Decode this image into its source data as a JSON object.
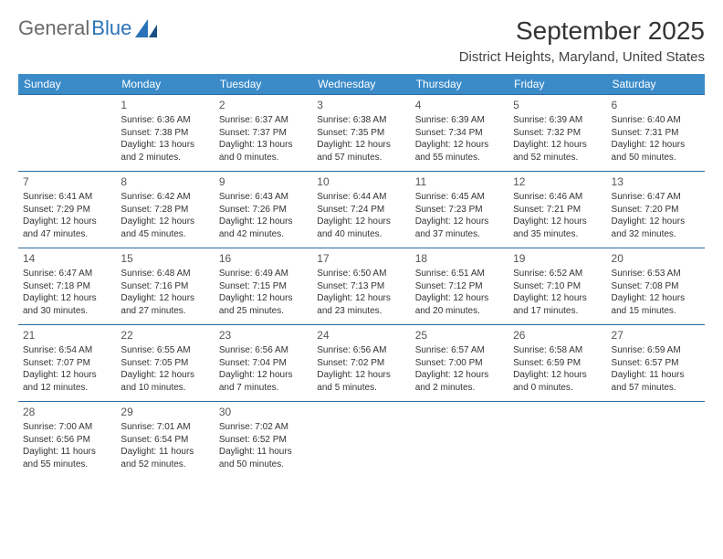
{
  "logo": {
    "part1": "General",
    "part2": "Blue"
  },
  "title": "September 2025",
  "location": "District Heights, Maryland, United States",
  "header_bg": "#3b8bc9",
  "row_border": "#2b6aa0",
  "dayHeaders": [
    "Sunday",
    "Monday",
    "Tuesday",
    "Wednesday",
    "Thursday",
    "Friday",
    "Saturday"
  ],
  "weeks": [
    [
      null,
      {
        "n": "1",
        "sr": "Sunrise: 6:36 AM",
        "ss": "Sunset: 7:38 PM",
        "dl": "Daylight: 13 hours and 2 minutes."
      },
      {
        "n": "2",
        "sr": "Sunrise: 6:37 AM",
        "ss": "Sunset: 7:37 PM",
        "dl": "Daylight: 13 hours and 0 minutes."
      },
      {
        "n": "3",
        "sr": "Sunrise: 6:38 AM",
        "ss": "Sunset: 7:35 PM",
        "dl": "Daylight: 12 hours and 57 minutes."
      },
      {
        "n": "4",
        "sr": "Sunrise: 6:39 AM",
        "ss": "Sunset: 7:34 PM",
        "dl": "Daylight: 12 hours and 55 minutes."
      },
      {
        "n": "5",
        "sr": "Sunrise: 6:39 AM",
        "ss": "Sunset: 7:32 PM",
        "dl": "Daylight: 12 hours and 52 minutes."
      },
      {
        "n": "6",
        "sr": "Sunrise: 6:40 AM",
        "ss": "Sunset: 7:31 PM",
        "dl": "Daylight: 12 hours and 50 minutes."
      }
    ],
    [
      {
        "n": "7",
        "sr": "Sunrise: 6:41 AM",
        "ss": "Sunset: 7:29 PM",
        "dl": "Daylight: 12 hours and 47 minutes."
      },
      {
        "n": "8",
        "sr": "Sunrise: 6:42 AM",
        "ss": "Sunset: 7:28 PM",
        "dl": "Daylight: 12 hours and 45 minutes."
      },
      {
        "n": "9",
        "sr": "Sunrise: 6:43 AM",
        "ss": "Sunset: 7:26 PM",
        "dl": "Daylight: 12 hours and 42 minutes."
      },
      {
        "n": "10",
        "sr": "Sunrise: 6:44 AM",
        "ss": "Sunset: 7:24 PM",
        "dl": "Daylight: 12 hours and 40 minutes."
      },
      {
        "n": "11",
        "sr": "Sunrise: 6:45 AM",
        "ss": "Sunset: 7:23 PM",
        "dl": "Daylight: 12 hours and 37 minutes."
      },
      {
        "n": "12",
        "sr": "Sunrise: 6:46 AM",
        "ss": "Sunset: 7:21 PM",
        "dl": "Daylight: 12 hours and 35 minutes."
      },
      {
        "n": "13",
        "sr": "Sunrise: 6:47 AM",
        "ss": "Sunset: 7:20 PM",
        "dl": "Daylight: 12 hours and 32 minutes."
      }
    ],
    [
      {
        "n": "14",
        "sr": "Sunrise: 6:47 AM",
        "ss": "Sunset: 7:18 PM",
        "dl": "Daylight: 12 hours and 30 minutes."
      },
      {
        "n": "15",
        "sr": "Sunrise: 6:48 AM",
        "ss": "Sunset: 7:16 PM",
        "dl": "Daylight: 12 hours and 27 minutes."
      },
      {
        "n": "16",
        "sr": "Sunrise: 6:49 AM",
        "ss": "Sunset: 7:15 PM",
        "dl": "Daylight: 12 hours and 25 minutes."
      },
      {
        "n": "17",
        "sr": "Sunrise: 6:50 AM",
        "ss": "Sunset: 7:13 PM",
        "dl": "Daylight: 12 hours and 23 minutes."
      },
      {
        "n": "18",
        "sr": "Sunrise: 6:51 AM",
        "ss": "Sunset: 7:12 PM",
        "dl": "Daylight: 12 hours and 20 minutes."
      },
      {
        "n": "19",
        "sr": "Sunrise: 6:52 AM",
        "ss": "Sunset: 7:10 PM",
        "dl": "Daylight: 12 hours and 17 minutes."
      },
      {
        "n": "20",
        "sr": "Sunrise: 6:53 AM",
        "ss": "Sunset: 7:08 PM",
        "dl": "Daylight: 12 hours and 15 minutes."
      }
    ],
    [
      {
        "n": "21",
        "sr": "Sunrise: 6:54 AM",
        "ss": "Sunset: 7:07 PM",
        "dl": "Daylight: 12 hours and 12 minutes."
      },
      {
        "n": "22",
        "sr": "Sunrise: 6:55 AM",
        "ss": "Sunset: 7:05 PM",
        "dl": "Daylight: 12 hours and 10 minutes."
      },
      {
        "n": "23",
        "sr": "Sunrise: 6:56 AM",
        "ss": "Sunset: 7:04 PM",
        "dl": "Daylight: 12 hours and 7 minutes."
      },
      {
        "n": "24",
        "sr": "Sunrise: 6:56 AM",
        "ss": "Sunset: 7:02 PM",
        "dl": "Daylight: 12 hours and 5 minutes."
      },
      {
        "n": "25",
        "sr": "Sunrise: 6:57 AM",
        "ss": "Sunset: 7:00 PM",
        "dl": "Daylight: 12 hours and 2 minutes."
      },
      {
        "n": "26",
        "sr": "Sunrise: 6:58 AM",
        "ss": "Sunset: 6:59 PM",
        "dl": "Daylight: 12 hours and 0 minutes."
      },
      {
        "n": "27",
        "sr": "Sunrise: 6:59 AM",
        "ss": "Sunset: 6:57 PM",
        "dl": "Daylight: 11 hours and 57 minutes."
      }
    ],
    [
      {
        "n": "28",
        "sr": "Sunrise: 7:00 AM",
        "ss": "Sunset: 6:56 PM",
        "dl": "Daylight: 11 hours and 55 minutes."
      },
      {
        "n": "29",
        "sr": "Sunrise: 7:01 AM",
        "ss": "Sunset: 6:54 PM",
        "dl": "Daylight: 11 hours and 52 minutes."
      },
      {
        "n": "30",
        "sr": "Sunrise: 7:02 AM",
        "ss": "Sunset: 6:52 PM",
        "dl": "Daylight: 11 hours and 50 minutes."
      },
      null,
      null,
      null,
      null
    ]
  ]
}
